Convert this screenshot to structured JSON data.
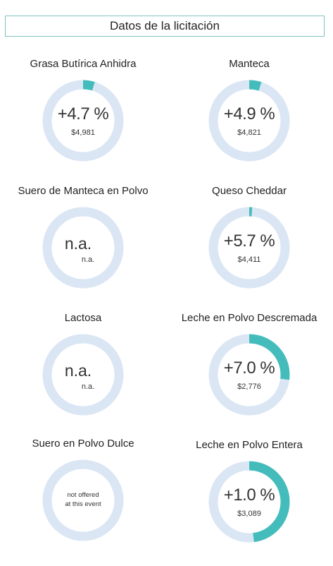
{
  "header": {
    "title": "Datos de la licitación"
  },
  "colors": {
    "ring": "#dbe6f4",
    "accent": "#45bcbc",
    "border": "#7fc4c4"
  },
  "tiles": [
    {
      "title": "Grasa Butírica Anhidra",
      "change": "+4.7 %",
      "price": "$4,981",
      "fill": 0.047,
      "state": "value"
    },
    {
      "title": "Manteca",
      "change": "+4.9 %",
      "price": "$4,821",
      "fill": 0.049,
      "state": "value"
    },
    {
      "title": "Suero de Manteca en Polvo",
      "na_main": "n.a.",
      "na_sub": "n.a.",
      "fill": 0,
      "state": "na"
    },
    {
      "title": "Queso Cheddar",
      "change": "+5.7 %",
      "price": "$4,411",
      "fill": 0.012,
      "state": "value"
    },
    {
      "title": "Lactosa",
      "na_main": "n.a.",
      "na_sub": "n.a.",
      "fill": 0,
      "state": "na"
    },
    {
      "title": "Leche en Polvo Descremada",
      "change": "+7.0 %",
      "price": "$2,776",
      "fill": 0.27,
      "state": "value"
    },
    {
      "title": "Suero en Polvo Dulce",
      "not_offered_1": "not offered",
      "not_offered_2": "at this event",
      "fill": 0,
      "state": "not-offered"
    },
    {
      "title": "Leche en Polvo Entera",
      "change": "+1.0 %",
      "price": "$3,089",
      "fill": 0.48,
      "state": "value"
    }
  ]
}
